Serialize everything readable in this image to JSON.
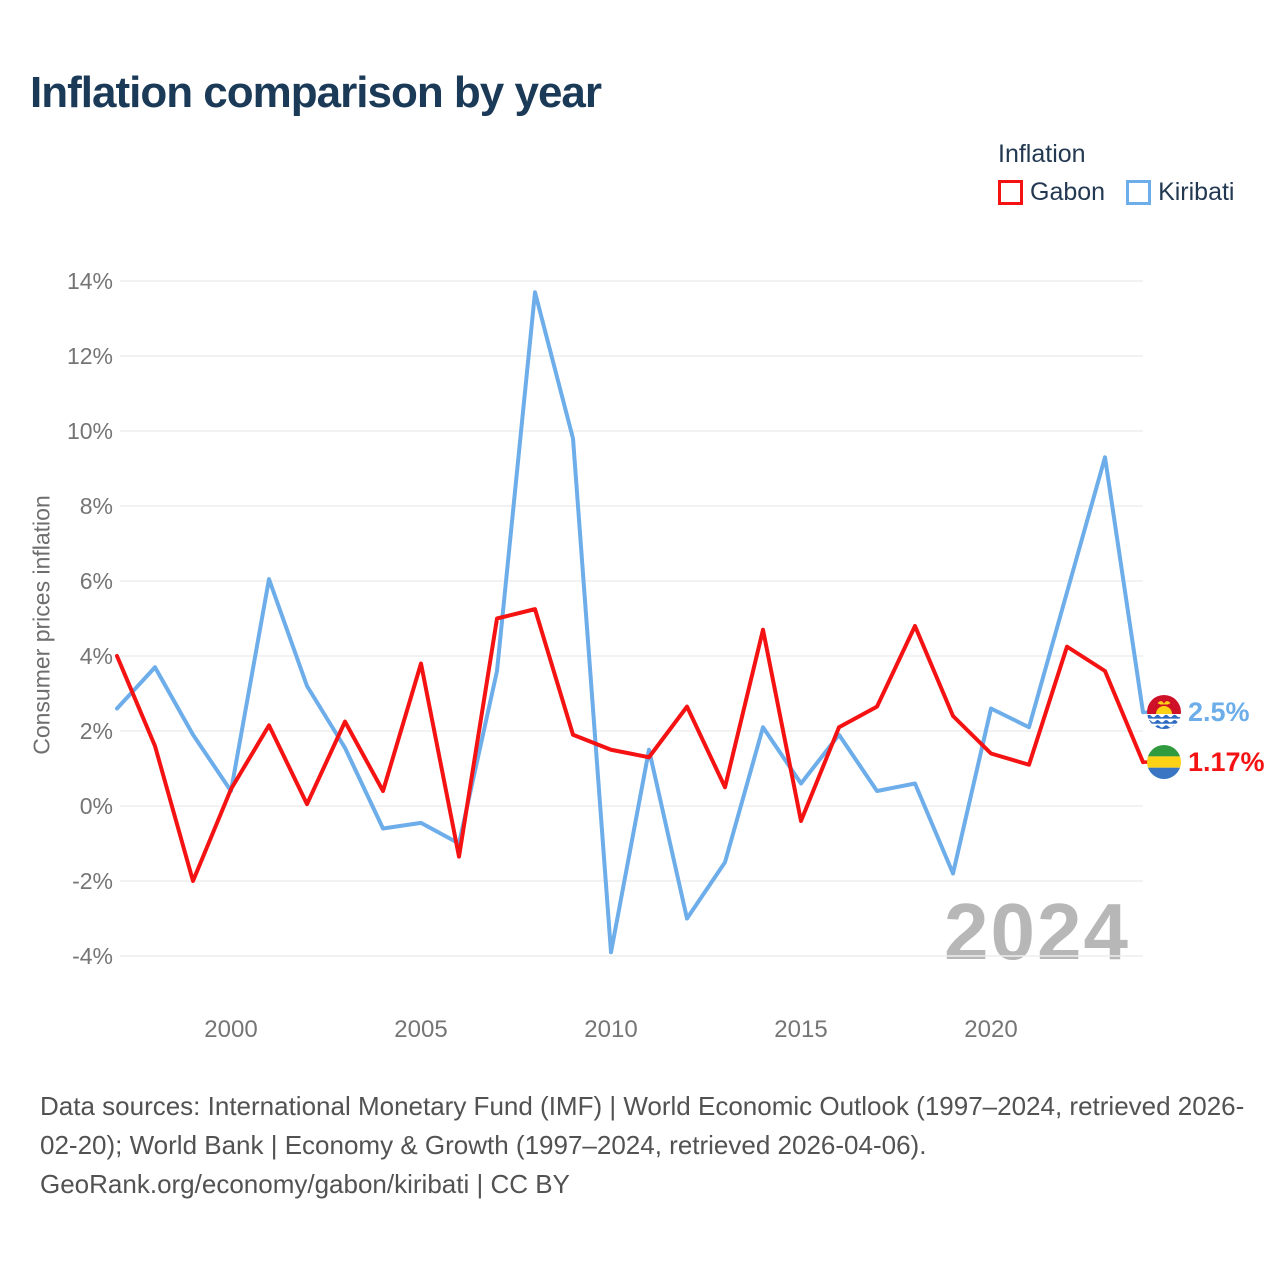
{
  "title": "Inflation comparison by year",
  "legend": {
    "title": "Inflation",
    "series": [
      {
        "label": "Gabon",
        "color": "#f41212"
      },
      {
        "label": "Kiribati",
        "color": "#6cadea"
      }
    ]
  },
  "chart_data": {
    "type": "line",
    "title": "Inflation comparison by year",
    "xlabel": "",
    "ylabel": "Consumer prices inflation",
    "x": [
      1997,
      1998,
      1999,
      2000,
      2001,
      2002,
      2003,
      2004,
      2005,
      2006,
      2007,
      2008,
      2009,
      2010,
      2011,
      2012,
      2013,
      2014,
      2015,
      2016,
      2017,
      2018,
      2019,
      2020,
      2021,
      2022,
      2023,
      2024
    ],
    "series": [
      {
        "name": "Kiribati",
        "color": "#6cadea",
        "values": [
          2.6,
          3.7,
          1.9,
          0.4,
          6.05,
          3.2,
          1.55,
          -0.6,
          -0.45,
          -1.0,
          3.6,
          13.7,
          9.8,
          -3.9,
          1.5,
          -3.0,
          -1.5,
          2.1,
          0.6,
          1.9,
          0.4,
          0.6,
          -1.8,
          2.6,
          2.1,
          5.7,
          9.3,
          2.5
        ],
        "end_label": "2.5%",
        "flag": "kiribati-flag"
      },
      {
        "name": "Gabon",
        "color": "#f41212",
        "values": [
          4.0,
          1.6,
          -2.0,
          0.45,
          2.15,
          0.05,
          2.25,
          0.4,
          3.8,
          -1.35,
          5.0,
          5.25,
          1.9,
          1.5,
          1.3,
          2.65,
          0.5,
          4.7,
          -0.4,
          2.1,
          2.65,
          4.8,
          2.4,
          1.4,
          1.1,
          4.25,
          3.6,
          1.17
        ],
        "end_label": "1.17%",
        "flag": "gabon-flag"
      }
    ],
    "yticks": [
      14,
      12,
      10,
      8,
      6,
      4,
      2,
      0,
      -2,
      -4
    ],
    "ytick_suffix": "%",
    "xticks": [
      2000,
      2005,
      2010,
      2015,
      2020
    ],
    "ylim": [
      -4.8,
      14.7
    ],
    "grid": true,
    "legend_position": "top-right",
    "watermark": "2024"
  },
  "footer": {
    "lines": [
      "Data sources: International Monetary Fund (IMF) | World Economic Outlook (1997–2024, retrieved 2026-",
      "02-20); World Bank | Economy & Growth (1997–2024, retrieved 2026-04-06).",
      "GeoRank.org/economy/gabon/kiribati | CC BY"
    ]
  }
}
